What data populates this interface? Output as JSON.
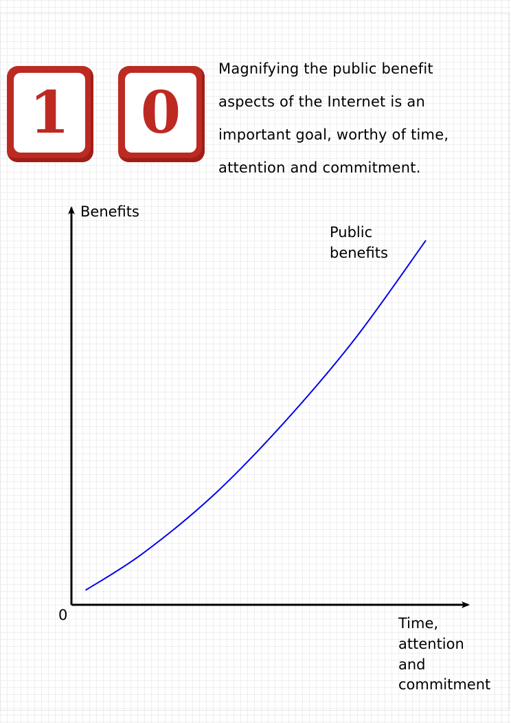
{
  "badge": {
    "digit_one": "1",
    "digit_two": "0",
    "color": "#bd2a22"
  },
  "caption": {
    "line1": "Magnifying the public benefit",
    "line2": "aspects of the Internet is an",
    "line3": "important goal, worthy of time,",
    "line4": "attention and commitment."
  },
  "chart_data": {
    "type": "line",
    "ylabel": "Benefits",
    "xlabel_lines": [
      "Time,",
      "attention",
      "and",
      "commitment"
    ],
    "origin_label": "0",
    "series": [
      {
        "name_lines": [
          "Public",
          "benefits"
        ],
        "color": "#0000ee",
        "x": [
          0.04,
          0.2,
          0.4,
          0.6,
          0.8,
          1.0
        ],
        "y": [
          0.04,
          0.14,
          0.3,
          0.5,
          0.73,
          1.0
        ]
      }
    ],
    "xlim": [
      0,
      1.12
    ],
    "ylim": [
      0,
      1.09
    ],
    "grid": true
  }
}
